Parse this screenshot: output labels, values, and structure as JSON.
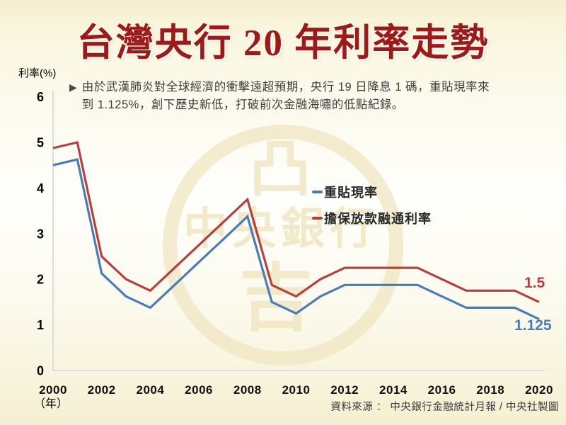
{
  "title": "台灣央行 20 年利率走勢",
  "annotation": {
    "bullet_icon": "▶",
    "text": "由於武漢肺炎對全球經濟的衝擊遠超預期，央行 19 日降息 1 碼，重貼現率來到 1.125%，創下歷史新低，打破前次金融海嘯的低點紀錄。"
  },
  "source_note": "資料來源 ： 中央銀行金融統計月報 / 中央社製圖",
  "watermark": {
    "text": "中央銀行",
    "top_glyph": "凸",
    "bottom_glyph": "吉",
    "color": "#F0E6C2"
  },
  "colors": {
    "title_red": "#9B1A1A",
    "rediscount_blue": "#4B7BB5",
    "accommodation_red": "#B4413E",
    "axis_gray": "#DCDCDC"
  },
  "chart_data": {
    "type": "line",
    "title": "台灣央行 20 年利率走勢",
    "xlabel": "（年）",
    "ylabel": "利率(%)",
    "x": [
      2000,
      2001,
      2002,
      2003,
      2004,
      2005,
      2006,
      2007,
      2008,
      2009,
      2010,
      2011,
      2012,
      2013,
      2014,
      2015,
      2016,
      2017,
      2018,
      2019,
      2020
    ],
    "series": [
      {
        "name": "重貼現率",
        "color": "#4B7BB5",
        "end_label": "1.125",
        "values": [
          4.5,
          4.625,
          2.125,
          1.625,
          1.375,
          1.875,
          2.375,
          2.875,
          3.375,
          1.5,
          1.25,
          1.625,
          1.875,
          1.875,
          1.875,
          1.875,
          1.625,
          1.375,
          1.375,
          1.375,
          1.125
        ]
      },
      {
        "name": "擔保放款融通利率",
        "color": "#B4413E",
        "end_label": "1.5",
        "values": [
          4.875,
          5.0,
          2.5,
          2.0,
          1.75,
          2.25,
          2.75,
          3.25,
          3.75,
          1.875,
          1.625,
          2.0,
          2.25,
          2.25,
          2.25,
          2.25,
          2.0,
          1.75,
          1.75,
          1.75,
          1.5
        ]
      }
    ],
    "x_ticks": [
      2000,
      2002,
      2004,
      2006,
      2008,
      2010,
      2012,
      2014,
      2016,
      2018,
      2020
    ],
    "y_ticks": [
      0,
      1,
      2,
      3,
      4,
      5,
      6
    ],
    "ylim": [
      0,
      6
    ],
    "grid": false,
    "legend_position": "center-right"
  }
}
